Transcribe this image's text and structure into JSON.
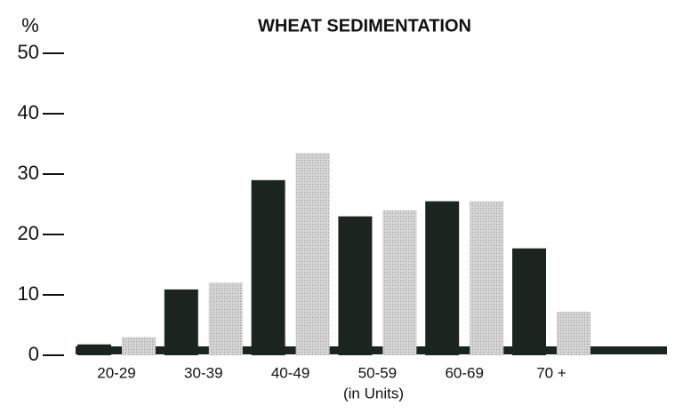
{
  "chart_data": {
    "type": "bar",
    "title": "WHEAT SEDIMENTATION",
    "y_label": "%",
    "x_label": "(in Units)",
    "categories": [
      "20-29",
      "30-39",
      "40-49",
      "50-59",
      "60-69",
      "70 +"
    ],
    "series": [
      {
        "color": "#1c2420",
        "values": [
          1.8,
          10.9,
          29,
          23,
          25.5,
          17.7
        ]
      },
      {
        "color": "#c8c8c8",
        "values": [
          3,
          12,
          33.5,
          24,
          25.5,
          7.2
        ]
      }
    ],
    "ylim": [
      0,
      50
    ],
    "yticks": [
      0,
      10,
      20,
      30,
      40,
      50
    ]
  }
}
